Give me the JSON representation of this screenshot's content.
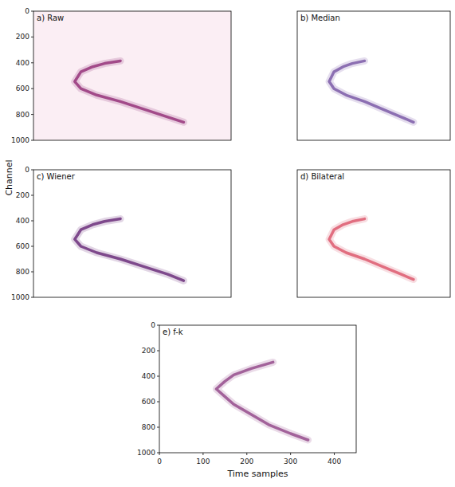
{
  "chart_data": [
    {
      "type": "line",
      "title": "a) Raw",
      "xlim": [
        0,
        450
      ],
      "ylim": [
        1000,
        0
      ],
      "yticks": [
        0,
        200,
        400,
        600,
        800,
        1000
      ],
      "tick_labels": "y",
      "x": [
        198,
        162,
        135,
        108,
        94,
        108,
        144,
        198,
        252,
        306,
        342
      ],
      "series": [
        {
          "color": "#8b1f6e",
          "values": [
            385,
            405,
            430,
            470,
            545,
            600,
            650,
            700,
            760,
            820,
            860
          ]
        }
      ]
    },
    {
      "type": "line",
      "title": "b) Median",
      "xlim": [
        0,
        450
      ],
      "ylim": [
        1000,
        0
      ],
      "tick_labels": false,
      "x": [
        198,
        162,
        135,
        108,
        94,
        108,
        144,
        198,
        252,
        306,
        342
      ],
      "series": [
        {
          "color": "#6e4a9e",
          "values": [
            385,
            405,
            430,
            470,
            545,
            600,
            650,
            700,
            760,
            820,
            860
          ]
        }
      ]
    },
    {
      "type": "line",
      "title": "c) Wiener",
      "xlim": [
        0,
        450
      ],
      "ylim": [
        1000,
        0
      ],
      "yticks": [
        0,
        200,
        400,
        600,
        800,
        1000
      ],
      "tick_labels": "y",
      "ylabel": "Channel",
      "x": [
        198,
        162,
        135,
        108,
        94,
        108,
        144,
        198,
        252,
        306,
        342
      ],
      "series": [
        {
          "color": "#5c1a6e",
          "values": [
            385,
            405,
            430,
            470,
            545,
            600,
            650,
            700,
            760,
            820,
            870
          ]
        }
      ]
    },
    {
      "type": "line",
      "title": "d) Bilateral",
      "xlim": [
        0,
        450
      ],
      "ylim": [
        1000,
        0
      ],
      "tick_labels": false,
      "x": [
        198,
        162,
        135,
        108,
        94,
        108,
        144,
        198,
        252,
        306,
        342
      ],
      "series": [
        {
          "color": "#d9485f",
          "values": [
            385,
            405,
            430,
            470,
            545,
            600,
            650,
            700,
            760,
            820,
            860
          ]
        }
      ]
    },
    {
      "type": "line",
      "title": "e) f-k",
      "xlim": [
        0,
        450
      ],
      "ylim": [
        1000,
        0
      ],
      "xticks": [
        0,
        100,
        200,
        300,
        400
      ],
      "yticks": [
        0,
        200,
        400,
        600,
        800,
        1000
      ],
      "xlabel": "Time samples",
      "x": [
        260,
        210,
        170,
        150,
        130,
        150,
        170,
        210,
        250,
        300,
        340
      ],
      "series": [
        {
          "color": "#8a3a80",
          "values": [
            290,
            340,
            390,
            440,
            500,
            560,
            620,
            700,
            780,
            850,
            900
          ]
        }
      ]
    }
  ]
}
